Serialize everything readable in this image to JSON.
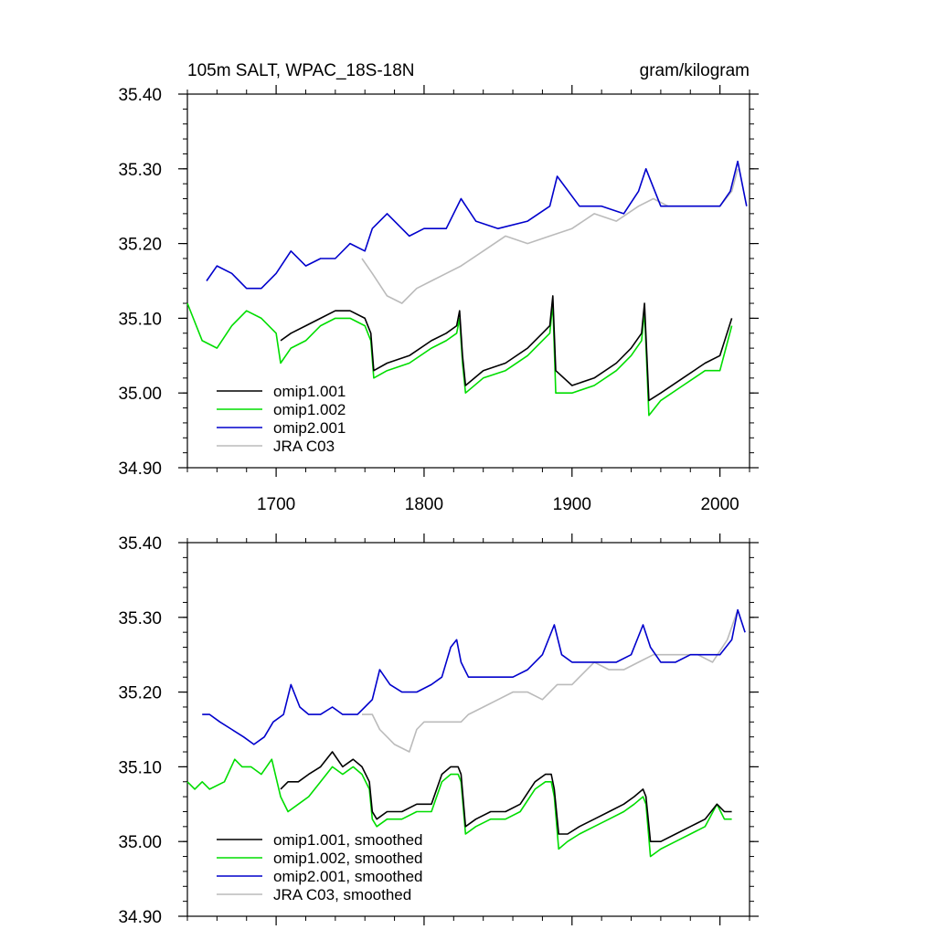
{
  "chart_data": [
    {
      "type": "line",
      "title": "105m SALT, WPAC_18S-18N",
      "units": "gram/kilogram",
      "xlim": [
        1640,
        2020
      ],
      "ylim": [
        34.9,
        35.4
      ],
      "x_ticks": [
        1700,
        1800,
        1900,
        2000
      ],
      "x_tick_labels": [
        "1700",
        "1800",
        "1900",
        "2000"
      ],
      "y_ticks": [
        34.9,
        35.0,
        35.1,
        35.2,
        35.3,
        35.4
      ],
      "y_tick_labels": [
        "34.90",
        "35.00",
        "35.10",
        "35.20",
        "35.30",
        "35.40"
      ],
      "grid": false,
      "legend_position": "bottom-left",
      "series": [
        {
          "name": "omip1.001",
          "color": "#000000",
          "x": [
            1703,
            1710,
            1720,
            1730,
            1740,
            1750,
            1760,
            1764,
            1766,
            1775,
            1790,
            1805,
            1815,
            1822,
            1824,
            1826,
            1828,
            1840,
            1855,
            1870,
            1880,
            1885,
            1887,
            1889,
            1900,
            1915,
            1930,
            1940,
            1947,
            1949,
            1952,
            1960,
            1975,
            1990,
            2000,
            2008
          ],
          "values": [
            35.07,
            35.08,
            35.09,
            35.1,
            35.11,
            35.11,
            35.1,
            35.08,
            35.03,
            35.04,
            35.05,
            35.07,
            35.08,
            35.09,
            35.11,
            35.05,
            35.01,
            35.03,
            35.04,
            35.06,
            35.08,
            35.09,
            35.13,
            35.03,
            35.01,
            35.02,
            35.04,
            35.06,
            35.08,
            35.12,
            34.99,
            35.0,
            35.02,
            35.04,
            35.05,
            35.1
          ]
        },
        {
          "name": "omip1.002",
          "color": "#00dd00",
          "x": [
            1640,
            1650,
            1660,
            1670,
            1680,
            1690,
            1700,
            1703,
            1710,
            1720,
            1730,
            1740,
            1750,
            1760,
            1764,
            1766,
            1775,
            1790,
            1805,
            1815,
            1822,
            1824,
            1826,
            1828,
            1840,
            1855,
            1870,
            1880,
            1885,
            1887,
            1889,
            1900,
            1915,
            1930,
            1940,
            1947,
            1949,
            1952,
            1960,
            1975,
            1990,
            2000,
            2008
          ],
          "values": [
            35.12,
            35.07,
            35.06,
            35.09,
            35.11,
            35.1,
            35.08,
            35.04,
            35.06,
            35.07,
            35.09,
            35.1,
            35.1,
            35.09,
            35.07,
            35.02,
            35.03,
            35.04,
            35.06,
            35.07,
            35.08,
            35.1,
            35.04,
            35.0,
            35.02,
            35.03,
            35.05,
            35.07,
            35.08,
            35.12,
            35.0,
            35.0,
            35.01,
            35.03,
            35.05,
            35.07,
            35.11,
            34.97,
            34.99,
            35.01,
            35.03,
            35.03,
            35.09
          ]
        },
        {
          "name": "omip2.001",
          "color": "#0000cc",
          "x": [
            1653,
            1660,
            1670,
            1680,
            1690,
            1700,
            1710,
            1720,
            1730,
            1740,
            1750,
            1760,
            1765,
            1775,
            1790,
            1800,
            1815,
            1825,
            1835,
            1850,
            1870,
            1885,
            1890,
            1905,
            1920,
            1935,
            1945,
            1950,
            1960,
            1975,
            1990,
            2000,
            2007,
            2012,
            2018
          ],
          "values": [
            35.15,
            35.17,
            35.16,
            35.14,
            35.14,
            35.16,
            35.19,
            35.17,
            35.18,
            35.18,
            35.2,
            35.19,
            35.22,
            35.24,
            35.21,
            35.22,
            35.22,
            35.26,
            35.23,
            35.22,
            35.23,
            35.25,
            35.29,
            35.25,
            35.25,
            35.24,
            35.27,
            35.3,
            35.25,
            35.25,
            35.25,
            35.25,
            35.27,
            35.31,
            35.25
          ]
        },
        {
          "name": "JRA C03",
          "color": "#bbbbbb",
          "x": [
            1758,
            1765,
            1775,
            1785,
            1795,
            1805,
            1815,
            1825,
            1840,
            1855,
            1870,
            1885,
            1900,
            1915,
            1930,
            1945,
            1955,
            1965,
            1975,
            1990,
            2000,
            2008,
            2012
          ],
          "values": [
            35.18,
            35.16,
            35.13,
            35.12,
            35.14,
            35.15,
            35.16,
            35.17,
            35.19,
            35.21,
            35.2,
            35.21,
            35.22,
            35.24,
            35.23,
            35.25,
            35.26,
            35.25,
            35.25,
            35.25,
            35.25,
            35.27,
            35.3
          ]
        }
      ]
    },
    {
      "type": "line",
      "title": "",
      "xlim": [
        1640,
        2020
      ],
      "ylim": [
        34.9,
        35.4
      ],
      "y_ticks": [
        34.9,
        35.0,
        35.1,
        35.2,
        35.3,
        35.4
      ],
      "y_tick_labels": [
        "34.90",
        "35.00",
        "35.10",
        "35.20",
        "35.30",
        "35.40"
      ],
      "grid": false,
      "legend_position": "bottom-left",
      "series": [
        {
          "name": "omip1.001, smoothed",
          "color": "#000000",
          "x": [
            1703,
            1708,
            1715,
            1722,
            1730,
            1738,
            1745,
            1752,
            1758,
            1763,
            1765,
            1768,
            1775,
            1785,
            1795,
            1805,
            1812,
            1818,
            1823,
            1825,
            1828,
            1835,
            1845,
            1855,
            1865,
            1875,
            1882,
            1886,
            1888,
            1891,
            1897,
            1905,
            1915,
            1925,
            1935,
            1942,
            1948,
            1950,
            1953,
            1960,
            1970,
            1980,
            1990,
            1998,
            2003,
            2008
          ],
          "values": [
            35.07,
            35.08,
            35.08,
            35.09,
            35.1,
            35.12,
            35.1,
            35.11,
            35.1,
            35.08,
            35.04,
            35.03,
            35.04,
            35.04,
            35.05,
            35.05,
            35.09,
            35.1,
            35.1,
            35.09,
            35.02,
            35.03,
            35.04,
            35.04,
            35.05,
            35.08,
            35.09,
            35.09,
            35.07,
            35.01,
            35.01,
            35.02,
            35.03,
            35.04,
            35.05,
            35.06,
            35.07,
            35.06,
            35.0,
            35.0,
            35.01,
            35.02,
            35.03,
            35.05,
            35.04,
            35.04
          ]
        },
        {
          "name": "omip1.002, smoothed",
          "color": "#00dd00",
          "x": [
            1640,
            1645,
            1650,
            1655,
            1665,
            1672,
            1677,
            1683,
            1690,
            1697,
            1703,
            1708,
            1715,
            1722,
            1730,
            1738,
            1745,
            1752,
            1758,
            1763,
            1765,
            1768,
            1775,
            1785,
            1795,
            1805,
            1812,
            1818,
            1823,
            1825,
            1828,
            1835,
            1845,
            1855,
            1865,
            1875,
            1882,
            1886,
            1888,
            1891,
            1897,
            1905,
            1915,
            1925,
            1935,
            1942,
            1948,
            1950,
            1953,
            1960,
            1970,
            1980,
            1990,
            1998,
            2003,
            2008
          ],
          "values": [
            35.08,
            35.07,
            35.08,
            35.07,
            35.08,
            35.11,
            35.1,
            35.1,
            35.09,
            35.11,
            35.06,
            35.04,
            35.05,
            35.06,
            35.08,
            35.1,
            35.09,
            35.1,
            35.09,
            35.07,
            35.03,
            35.02,
            35.03,
            35.03,
            35.04,
            35.04,
            35.08,
            35.09,
            35.09,
            35.08,
            35.01,
            35.02,
            35.03,
            35.03,
            35.04,
            35.07,
            35.08,
            35.08,
            35.06,
            34.99,
            35.0,
            35.01,
            35.02,
            35.03,
            35.04,
            35.05,
            35.06,
            35.05,
            34.98,
            34.99,
            35.0,
            35.01,
            35.02,
            35.05,
            35.03,
            35.03
          ]
        },
        {
          "name": "omip2.001, smoothed",
          "color": "#0000cc",
          "x": [
            1650,
            1655,
            1662,
            1670,
            1678,
            1685,
            1692,
            1698,
            1705,
            1710,
            1716,
            1722,
            1730,
            1738,
            1745,
            1755,
            1760,
            1765,
            1770,
            1777,
            1785,
            1795,
            1805,
            1812,
            1818,
            1822,
            1825,
            1830,
            1840,
            1850,
            1860,
            1870,
            1880,
            1888,
            1893,
            1900,
            1910,
            1920,
            1930,
            1940,
            1948,
            1953,
            1960,
            1970,
            1980,
            1990,
            2000,
            2008,
            2012,
            2017
          ],
          "values": [
            35.17,
            35.17,
            35.16,
            35.15,
            35.14,
            35.13,
            35.14,
            35.16,
            35.17,
            35.21,
            35.18,
            35.17,
            35.17,
            35.18,
            35.17,
            35.17,
            35.18,
            35.19,
            35.23,
            35.21,
            35.2,
            35.2,
            35.21,
            35.22,
            35.26,
            35.27,
            35.24,
            35.22,
            35.22,
            35.22,
            35.22,
            35.23,
            35.25,
            35.29,
            35.25,
            35.24,
            35.24,
            35.24,
            35.24,
            35.25,
            35.29,
            35.26,
            35.24,
            35.24,
            35.25,
            35.25,
            35.25,
            35.27,
            35.31,
            35.28
          ]
        },
        {
          "name": "JRA C03, smoothed",
          "color": "#bbbbbb",
          "x": [
            1758,
            1765,
            1770,
            1775,
            1780,
            1790,
            1795,
            1800,
            1805,
            1815,
            1825,
            1830,
            1840,
            1850,
            1860,
            1870,
            1880,
            1890,
            1900,
            1905,
            1915,
            1925,
            1935,
            1945,
            1955,
            1965,
            1975,
            1985,
            1995,
            2005,
            2012
          ],
          "values": [
            35.17,
            35.17,
            35.15,
            35.14,
            35.13,
            35.12,
            35.15,
            35.16,
            35.16,
            35.16,
            35.16,
            35.17,
            35.18,
            35.19,
            35.2,
            35.2,
            35.19,
            35.21,
            35.21,
            35.22,
            35.24,
            35.23,
            35.23,
            35.24,
            35.25,
            35.25,
            35.25,
            35.25,
            35.24,
            35.27,
            35.31
          ]
        }
      ]
    }
  ]
}
